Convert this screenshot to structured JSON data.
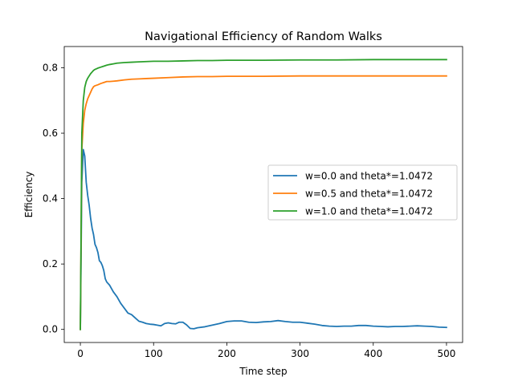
{
  "chart_data": {
    "type": "line",
    "title": "Navigational Efficiency of Random Walks",
    "xlabel": "Time step",
    "ylabel": "Efficiency",
    "xlim": [
      -22,
      522
    ],
    "ylim": [
      -0.04,
      0.865
    ],
    "xticks": [
      0,
      100,
      200,
      300,
      400,
      500
    ],
    "yticks": [
      0.0,
      0.2,
      0.4,
      0.6,
      0.8
    ],
    "xtick_labels": [
      "0",
      "100",
      "200",
      "300",
      "400",
      "500"
    ],
    "ytick_labels": [
      "0.0",
      "0.2",
      "0.4",
      "0.6",
      "0.8"
    ],
    "grid": false,
    "legend_position": "center-right",
    "series": [
      {
        "name": "w=0.0 and theta*=1.0472",
        "color": "#1f77b4",
        "x": [
          0,
          2,
          4,
          6,
          8,
          10,
          12,
          14,
          16,
          18,
          20,
          22,
          24,
          26,
          28,
          30,
          32,
          34,
          36,
          40,
          45,
          50,
          55,
          60,
          65,
          70,
          75,
          80,
          85,
          90,
          95,
          100,
          105,
          110,
          115,
          120,
          125,
          130,
          135,
          140,
          145,
          150,
          155,
          160,
          170,
          180,
          190,
          200,
          210,
          220,
          230,
          240,
          250,
          260,
          270,
          280,
          290,
          300,
          310,
          320,
          330,
          340,
          350,
          360,
          370,
          380,
          390,
          400,
          410,
          420,
          430,
          440,
          450,
          460,
          470,
          480,
          490,
          500
        ],
        "values": [
          0.0,
          0.45,
          0.55,
          0.53,
          0.45,
          0.41,
          0.38,
          0.34,
          0.31,
          0.29,
          0.26,
          0.25,
          0.235,
          0.21,
          0.205,
          0.195,
          0.18,
          0.155,
          0.145,
          0.135,
          0.115,
          0.1,
          0.08,
          0.065,
          0.05,
          0.045,
          0.035,
          0.025,
          0.022,
          0.018,
          0.016,
          0.015,
          0.013,
          0.011,
          0.018,
          0.02,
          0.018,
          0.017,
          0.022,
          0.022,
          0.014,
          0.003,
          0.002,
          0.005,
          0.008,
          0.013,
          0.018,
          0.024,
          0.026,
          0.026,
          0.022,
          0.021,
          0.023,
          0.024,
          0.027,
          0.024,
          0.022,
          0.022,
          0.019,
          0.016,
          0.012,
          0.01,
          0.009,
          0.01,
          0.01,
          0.012,
          0.012,
          0.01,
          0.009,
          0.008,
          0.009,
          0.009,
          0.01,
          0.011,
          0.01,
          0.009,
          0.007,
          0.006
        ]
      },
      {
        "name": "w=0.5 and theta*=1.0472",
        "color": "#ff7f0e",
        "x": [
          0,
          2,
          4,
          6,
          8,
          10,
          12,
          14,
          16,
          18,
          20,
          24,
          28,
          32,
          36,
          40,
          45,
          50,
          60,
          70,
          80,
          90,
          100,
          120,
          140,
          160,
          180,
          200,
          250,
          300,
          350,
          400,
          450,
          500
        ],
        "values": [
          0.0,
          0.55,
          0.63,
          0.67,
          0.69,
          0.705,
          0.715,
          0.725,
          0.735,
          0.742,
          0.745,
          0.748,
          0.752,
          0.755,
          0.758,
          0.758,
          0.759,
          0.76,
          0.763,
          0.765,
          0.766,
          0.767,
          0.768,
          0.77,
          0.772,
          0.773,
          0.773,
          0.774,
          0.774,
          0.775,
          0.775,
          0.775,
          0.775,
          0.775
        ]
      },
      {
        "name": "w=1.0 and theta*=1.0472",
        "color": "#2ca02c",
        "x": [
          0,
          2,
          4,
          6,
          8,
          10,
          12,
          14,
          16,
          18,
          20,
          24,
          28,
          32,
          36,
          40,
          45,
          50,
          60,
          70,
          80,
          90,
          100,
          120,
          140,
          160,
          180,
          200,
          250,
          300,
          350,
          400,
          450,
          500
        ],
        "values": [
          0.0,
          0.6,
          0.7,
          0.74,
          0.758,
          0.768,
          0.775,
          0.782,
          0.787,
          0.792,
          0.795,
          0.799,
          0.802,
          0.805,
          0.808,
          0.81,
          0.812,
          0.814,
          0.816,
          0.817,
          0.818,
          0.819,
          0.82,
          0.82,
          0.821,
          0.822,
          0.822,
          0.823,
          0.823,
          0.824,
          0.824,
          0.825,
          0.825,
          0.825
        ]
      }
    ]
  }
}
